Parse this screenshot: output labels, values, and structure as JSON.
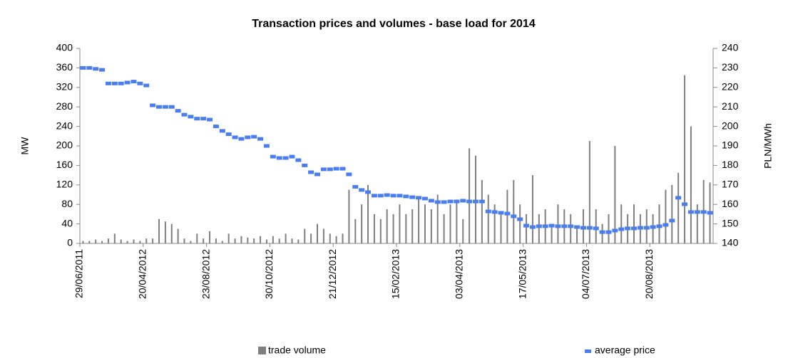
{
  "chart_data": {
    "type": "bar_line",
    "title": "Transaction prices and volumes - base load for 2014",
    "ylabel": "MW",
    "y2label": "PLN/MWh",
    "ylim": [
      0,
      400
    ],
    "yticks": [
      0,
      40,
      80,
      120,
      160,
      200,
      240,
      280,
      320,
      360,
      400
    ],
    "y2lim": [
      140,
      240
    ],
    "y2ticks": [
      140,
      150,
      160,
      170,
      180,
      190,
      200,
      210,
      220,
      230,
      240
    ],
    "grid": false,
    "legend": "bottom",
    "categories": [
      "29/06/2011",
      null,
      null,
      null,
      null,
      null,
      null,
      null,
      null,
      null,
      "20/04/2012",
      null,
      null,
      null,
      null,
      null,
      null,
      null,
      null,
      null,
      "23/08/2012",
      null,
      null,
      null,
      null,
      null,
      null,
      null,
      null,
      null,
      "30/10/2012",
      null,
      null,
      null,
      null,
      null,
      null,
      null,
      null,
      null,
      "21/12/2012",
      null,
      null,
      null,
      null,
      null,
      null,
      null,
      null,
      null,
      "15/02/2013",
      null,
      null,
      null,
      null,
      null,
      null,
      null,
      null,
      null,
      "03/04/2013",
      null,
      null,
      null,
      null,
      null,
      null,
      null,
      null,
      null,
      "17/05/2013",
      null,
      null,
      null,
      null,
      null,
      null,
      null,
      null,
      null,
      "04/07/2013",
      null,
      null,
      null,
      null,
      null,
      null,
      null,
      null,
      null,
      "20/08/2013",
      null,
      null,
      null,
      null,
      null,
      null,
      null,
      null,
      null
    ],
    "series": [
      {
        "name": "trade volume",
        "type": "bar",
        "color": "#7f7f7f",
        "values": [
          5,
          5,
          8,
          5,
          10,
          20,
          8,
          5,
          8,
          5,
          10,
          10,
          50,
          45,
          40,
          30,
          10,
          5,
          20,
          10,
          25,
          10,
          5,
          20,
          10,
          15,
          12,
          10,
          15,
          8,
          15,
          10,
          20,
          10,
          8,
          30,
          20,
          40,
          30,
          20,
          15,
          20,
          110,
          50,
          80,
          120,
          60,
          50,
          70,
          60,
          80,
          60,
          70,
          90,
          80,
          70,
          100,
          60,
          80,
          90,
          50,
          195,
          180,
          130,
          100,
          80,
          60,
          110,
          130,
          80,
          60,
          140,
          60,
          70,
          40,
          80,
          70,
          60,
          30,
          70,
          210,
          70,
          40,
          60,
          200,
          80,
          60,
          80,
          60,
          70,
          60,
          80,
          110,
          120,
          145,
          345,
          240,
          80,
          130,
          125
        ]
      },
      {
        "name": "average price",
        "type": "line",
        "axis": "y2",
        "color": "#4a7ef0",
        "values": [
          230,
          230,
          229.5,
          229,
          222,
          222,
          222,
          222.5,
          223,
          222,
          221,
          210.8,
          210,
          210,
          210,
          208,
          206,
          205,
          204,
          204,
          203.5,
          200,
          197.7,
          196,
          194.4,
          193.6,
          194.4,
          194.7,
          193.6,
          190,
          184.5,
          183.8,
          183.8,
          184.5,
          182.7,
          180,
          176.5,
          175.4,
          178,
          178,
          178.3,
          178.3,
          175.4,
          169,
          167.4,
          166.3,
          164.5,
          164.5,
          164.8,
          164.5,
          164.5,
          164.1,
          163.7,
          163.4,
          163,
          161.9,
          161.2,
          161.2,
          161.5,
          161.5,
          161.9,
          161.5,
          161.5,
          161.5,
          156.4,
          156.1,
          155.7,
          155.3,
          153.9,
          152.4,
          149.1,
          148.4,
          148.8,
          148.8,
          149.1,
          148.8,
          148.8,
          148.8,
          148.4,
          148,
          148,
          147.7,
          145.8,
          145.8,
          146.6,
          147.3,
          147.7,
          147.7,
          148,
          148,
          148.4,
          148.8,
          149.5,
          151.7,
          163.4,
          160.1,
          156.1,
          156.1,
          156.1,
          155.7
        ]
      }
    ]
  }
}
